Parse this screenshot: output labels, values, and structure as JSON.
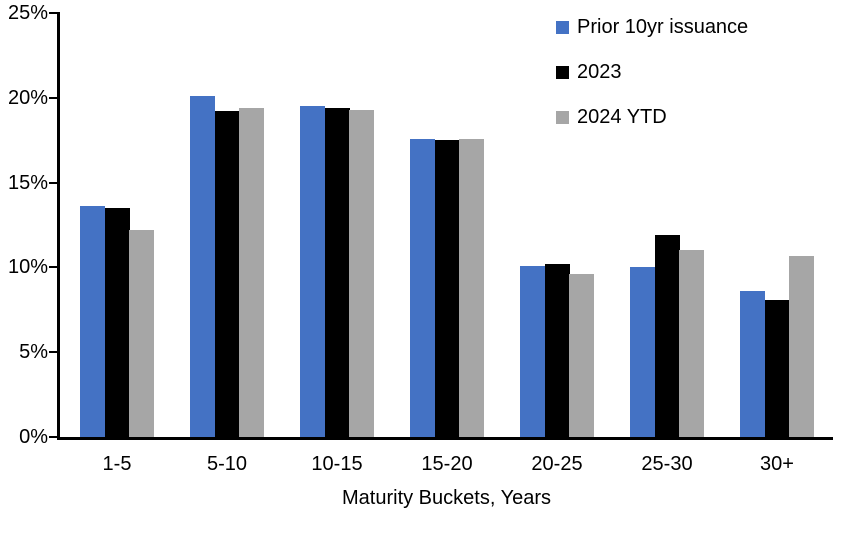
{
  "chart_data": {
    "type": "bar",
    "title": "",
    "xlabel": "Maturity Buckets, Years",
    "ylabel": "",
    "ylim": [
      0,
      25
    ],
    "ytick_step": 5,
    "ytick_labels": [
      "0%",
      "5%",
      "10%",
      "15%",
      "20%",
      "25%"
    ],
    "grid": false,
    "legend_position": "top-right",
    "categories": [
      "1-5",
      "5-10",
      "10-15",
      "15-20",
      "20-25",
      "25-30",
      "30+"
    ],
    "series": [
      {
        "name": "Prior 10yr issuance",
        "color": "#4472C4",
        "values": [
          13.6,
          20.1,
          19.5,
          17.6,
          10.1,
          10.0,
          8.6
        ]
      },
      {
        "name": "2023",
        "color": "#000000",
        "values": [
          13.5,
          19.2,
          19.4,
          17.5,
          10.2,
          11.9,
          8.1
        ]
      },
      {
        "name": "2024 YTD",
        "color": "#A6A6A6",
        "values": [
          12.2,
          19.4,
          19.3,
          17.6,
          9.6,
          11.0,
          10.7
        ]
      }
    ],
    "colors": {
      "axis": "#000000",
      "text": "#000000",
      "background": "#FFFFFF"
    }
  }
}
